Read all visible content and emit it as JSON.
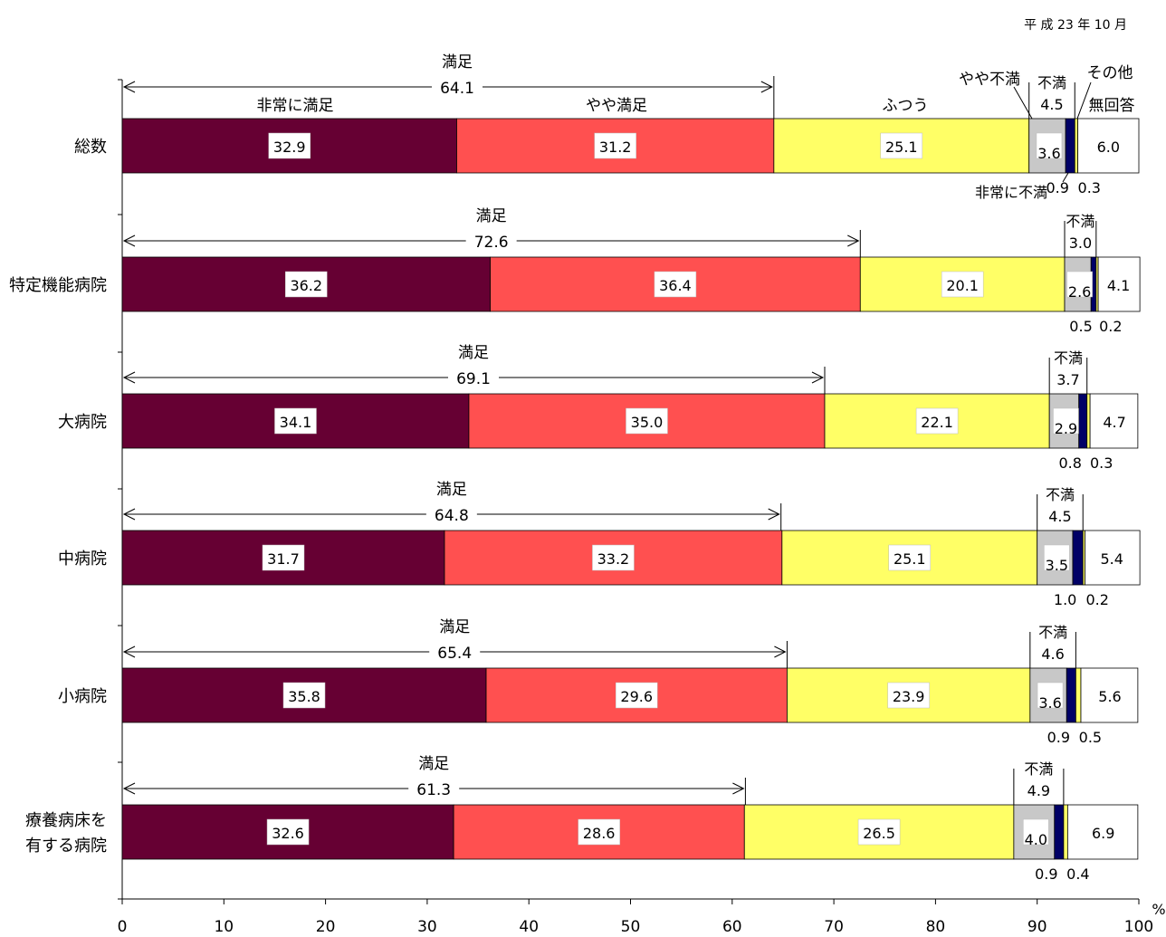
{
  "date_label": "平 成 23 年 10 月",
  "chart_data": {
    "type": "bar",
    "orientation": "horizontal-stacked",
    "unit": "%",
    "xlim": [
      0,
      100
    ],
    "ticks": [
      "0",
      "10",
      "20",
      "30",
      "40",
      "50",
      "60",
      "70",
      "80",
      "90",
      "100"
    ],
    "categories": [
      "総数",
      "特定機能病院",
      "大病院",
      "中病院",
      "小病院",
      "療養病床を\n有する病院"
    ],
    "series": [
      {
        "name": "非常に満足",
        "color": "#660033",
        "values": [
          32.9,
          36.2,
          34.1,
          31.7,
          35.8,
          32.6
        ],
        "labels": [
          "32.9",
          "36.2",
          "34.1",
          "31.7",
          "35.8",
          "32.6"
        ]
      },
      {
        "name": "やや満足",
        "color": "#ff5050",
        "values": [
          31.2,
          36.4,
          35.0,
          33.2,
          29.6,
          28.6
        ],
        "labels": [
          "31.2",
          "36.4",
          "35.0",
          "33.2",
          "29.6",
          "28.6"
        ]
      },
      {
        "name": "ふつう",
        "color": "#ffff66",
        "values": [
          25.1,
          20.1,
          22.1,
          25.1,
          23.9,
          26.5
        ],
        "labels": [
          "25.1",
          "20.1",
          "22.1",
          "25.1",
          "23.9",
          "26.5"
        ]
      },
      {
        "name": "やや不満",
        "color": "#c8c8c8",
        "values": [
          3.6,
          2.6,
          2.9,
          3.5,
          3.6,
          4.0
        ],
        "labels": [
          "3.6",
          "2.6",
          "2.9",
          "3.5",
          "3.6",
          "4.0"
        ]
      },
      {
        "name": "非常に不満",
        "color": "#000066",
        "values": [
          0.9,
          0.5,
          0.8,
          1.0,
          0.9,
          0.9
        ],
        "labels": [
          "0.9",
          "0.5",
          "0.8",
          "1.0",
          "0.9",
          "0.9"
        ]
      },
      {
        "name": "その他",
        "color": "#ffff66",
        "values": [
          0.3,
          0.2,
          0.3,
          0.2,
          0.5,
          0.4
        ],
        "labels": [
          "0.3",
          "0.2",
          "0.3",
          "0.2",
          "0.5",
          "0.4"
        ]
      },
      {
        "name": "無回答",
        "color": "#ffffff",
        "values": [
          6.0,
          4.1,
          4.7,
          5.4,
          5.6,
          6.9
        ],
        "labels": [
          "6.0",
          "4.1",
          "4.7",
          "5.4",
          "5.6",
          "6.9"
        ]
      }
    ],
    "manzoku": {
      "label": "満足",
      "values": [
        "64.1",
        "72.6",
        "69.1",
        "64.8",
        "65.4",
        "61.3"
      ],
      "ends": [
        64.1,
        72.6,
        69.1,
        64.8,
        65.4,
        61.3
      ]
    },
    "fuman": {
      "label": "不満",
      "values": [
        "4.5",
        "3.0",
        "3.7",
        "4.5",
        "4.6",
        "4.9"
      ]
    },
    "legend_labels": {
      "hijou_manzoku": "非常に満足",
      "yaya_manzoku": "やや満足",
      "futsuu": "ふつう",
      "yaya_fuman": "やや不満",
      "hijou_fuman": "非常に不満",
      "sonota": "その他",
      "mukaitou": "無回答"
    }
  }
}
